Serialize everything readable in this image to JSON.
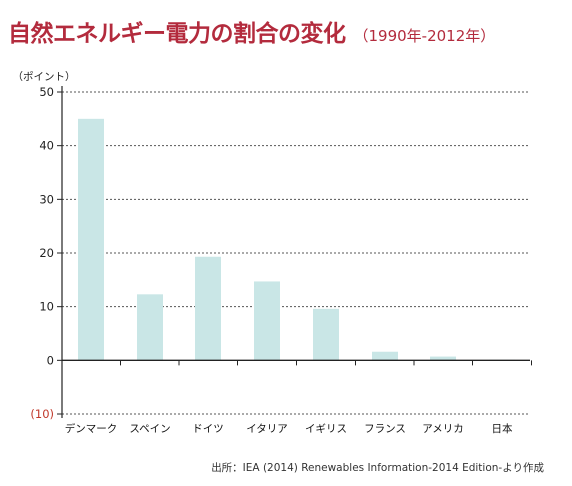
{
  "title": "自然エネルギー電力の割合の変化",
  "subtitle": "（1990年-2012年）",
  "source": "出所：IEA (2014) Renewables Information-2014 Edition-より作成",
  "colors": {
    "bar": "#c9e6e6",
    "title": "#b32b3d",
    "negative_tick": "#c0392b",
    "axis": "#222222",
    "grid": "#555555"
  },
  "chart_data": {
    "type": "bar",
    "title": "自然エネルギー電力の割合の変化",
    "ylabel": "（ポイント）",
    "xlabel": "",
    "categories": [
      "デンマーク",
      "スペイン",
      "ドイツ",
      "イタリア",
      "イギリス",
      "フランス",
      "アメリカ",
      "日本"
    ],
    "values": [
      45,
      12.3,
      19.3,
      14.7,
      9.6,
      1.6,
      0.7,
      0
    ],
    "ylim": [
      -10,
      50
    ],
    "yticks": [
      "50",
      "40",
      "30",
      "20",
      "10",
      "0",
      "(10)"
    ],
    "ytick_values": [
      50,
      40,
      30,
      20,
      10,
      0,
      -10
    ],
    "grid": true,
    "grid_style": "dashed"
  }
}
